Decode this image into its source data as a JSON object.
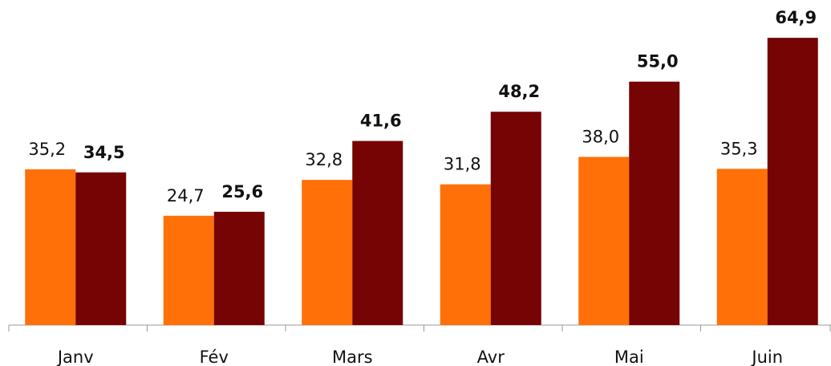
{
  "chart_data": {
    "type": "bar",
    "categories": [
      "Janv",
      "Fév",
      "Mars",
      "Avr",
      "Mai",
      "Juin"
    ],
    "series": [
      {
        "color": "#ff7008",
        "values": [
          35.2,
          24.7,
          32.8,
          31.8,
          38.0,
          35.3
        ],
        "value_labels": [
          "35,2",
          "24,7",
          "32,8",
          "31,8",
          "38,0",
          "35,3"
        ]
      },
      {
        "color": "#760404",
        "values": [
          34.5,
          25.6,
          41.6,
          48.2,
          55.0,
          64.9
        ],
        "value_labels": [
          "34,5",
          "25,6",
          "41,6",
          "48,2",
          "55,0",
          "64,9"
        ]
      }
    ],
    "ylim": [
      0,
      70
    ]
  }
}
